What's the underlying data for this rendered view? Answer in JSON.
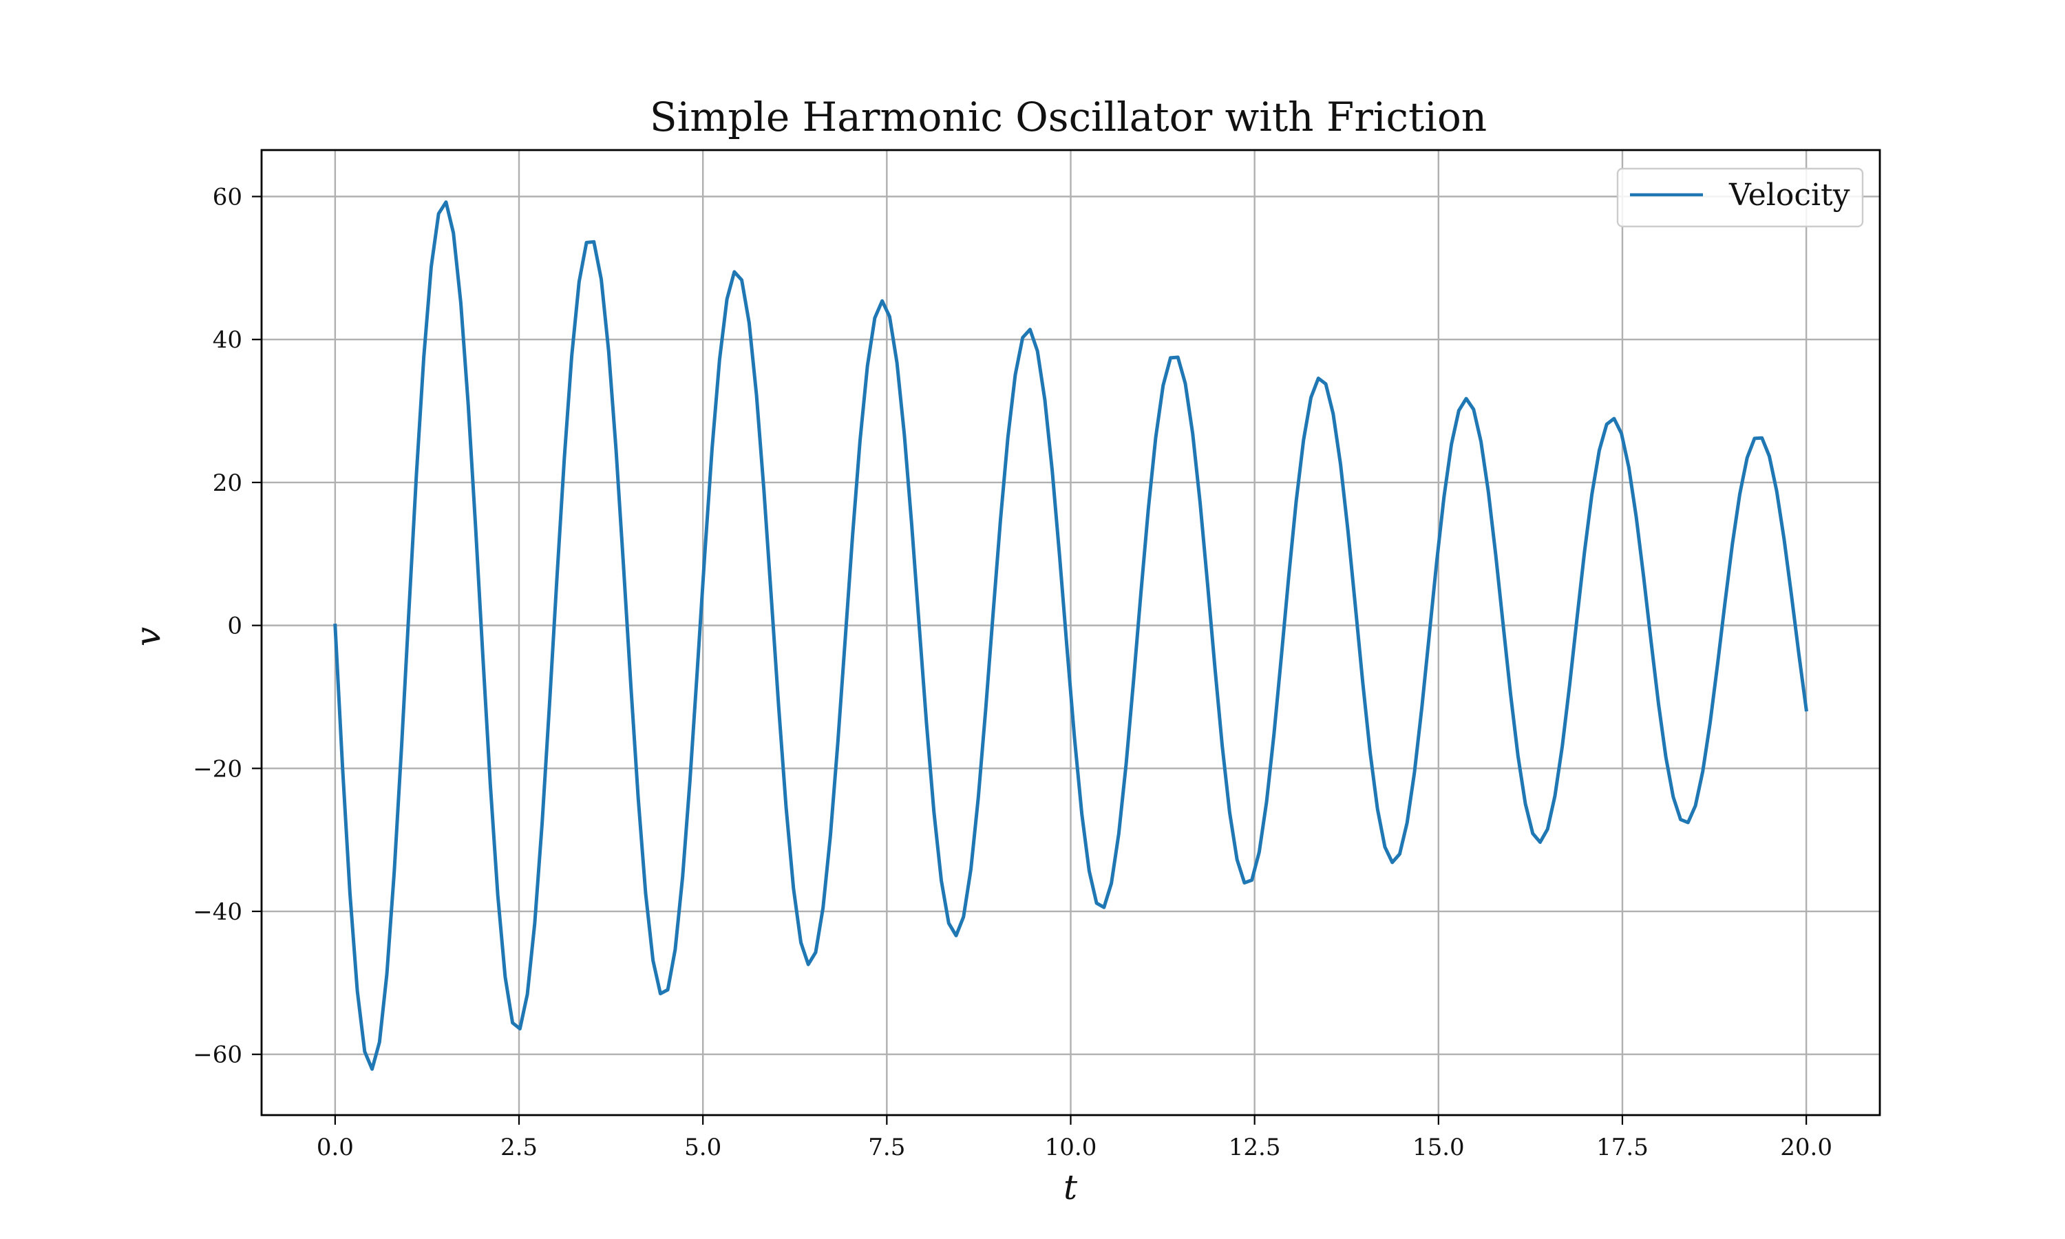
{
  "chart_data": {
    "type": "line",
    "title": "Simple Harmonic Oscillator with Friction",
    "xlabel": "t",
    "ylabel": "v",
    "xlim": [
      -1.0,
      21.0
    ],
    "ylim": [
      -68.5,
      66.5
    ],
    "xticks": [
      0.0,
      2.5,
      5.0,
      7.5,
      10.0,
      12.5,
      15.0,
      17.5,
      20.0
    ],
    "xtick_labels": [
      "0.0",
      "2.5",
      "5.0",
      "7.5",
      "10.0",
      "12.5",
      "15.0",
      "17.5",
      "20.0"
    ],
    "yticks": [
      -60,
      -40,
      -20,
      0,
      20,
      40,
      60
    ],
    "ytick_labels": [
      "−60",
      "−40",
      "−20",
      "0",
      "20",
      "40",
      "60"
    ],
    "grid": true,
    "legend": {
      "position": "top-right",
      "entries": [
        "Velocity"
      ]
    },
    "series": [
      {
        "name": "Velocity",
        "color": "#1f77b4",
        "model": "damped-sine",
        "x_range": [
          0.0,
          20.0
        ],
        "samples": 200,
        "amplitude": 63.5,
        "decay_rate": 0.0451,
        "period": 1.985,
        "sign": -1
      }
    ]
  }
}
